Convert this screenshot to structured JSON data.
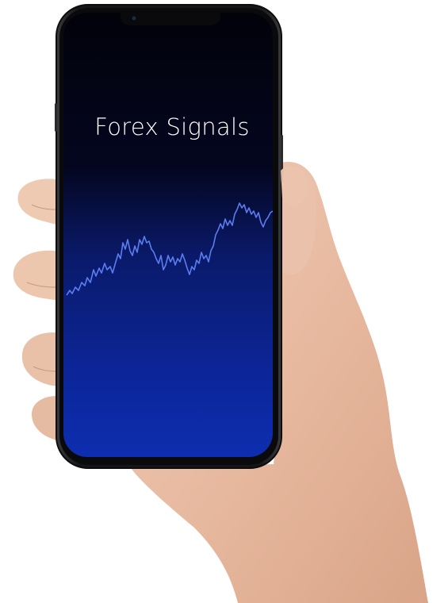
{
  "app": {
    "title": "Forex Signals"
  },
  "colors": {
    "screen_top": "#03030f",
    "screen_bottom": "#0b2aa8",
    "chart_line": "#5b7df0",
    "phone_frame": "#1c1c1e",
    "skin": "#e8bfa8"
  },
  "icons": {
    "hand": "hand-illustration",
    "phone": "smartphone-illustration",
    "camera": "front-camera-dot"
  }
}
